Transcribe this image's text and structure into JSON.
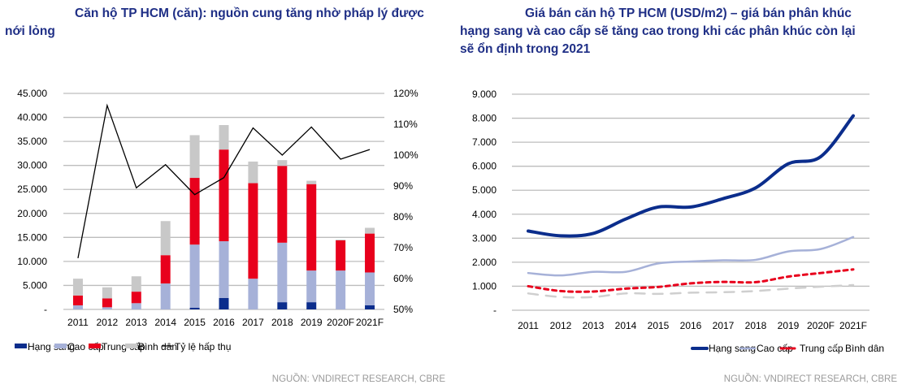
{
  "chart_data": [
    {
      "type": "bar",
      "stacked": true,
      "title": "Căn hộ TP HCM (căn): nguồn cung tăng nhờ pháp lý được nới lỏng",
      "categories": [
        "2011",
        "2012",
        "2013",
        "2014",
        "2015",
        "2016",
        "2017",
        "2018",
        "2019",
        "2020F",
        "2021F"
      ],
      "ylim": [
        0,
        45000
      ],
      "yticks": [
        "-",
        "5.000",
        "10.000",
        "15.000",
        "20.000",
        "25.000",
        "30.000",
        "35.000",
        "40.000",
        "45.000"
      ],
      "y2lim": [
        50,
        120
      ],
      "y2ticks": [
        "50%",
        "60%",
        "70%",
        "80%",
        "90%",
        "100%",
        "110%",
        "120%"
      ],
      "series": [
        {
          "name": "Hạng sang",
          "color": "#0b2d8c",
          "values": [
            0,
            0,
            0,
            0,
            350,
            2400,
            0,
            1500,
            1500,
            0,
            850
          ]
        },
        {
          "name": "Cao cấp",
          "color": "#a6b1d8",
          "values": [
            850,
            450,
            1300,
            5400,
            13150,
            11800,
            6400,
            12400,
            6600,
            8100,
            6850
          ]
        },
        {
          "name": "Trung cấp",
          "color": "#e8001c",
          "values": [
            2050,
            1850,
            2400,
            5900,
            13900,
            19100,
            19900,
            16000,
            18000,
            6300,
            8100
          ]
        },
        {
          "name": "Bình dân",
          "color": "#c8c8c8",
          "values": [
            3500,
            2300,
            3200,
            7100,
            8900,
            5100,
            4500,
            1200,
            700,
            150,
            1200
          ]
        }
      ],
      "line": {
        "name": "Tỷ lệ hấp thụ",
        "color": "#000000",
        "axis": "right",
        "values": [
          66.6,
          116.1,
          89.4,
          96.9,
          87.2,
          92.7,
          108.8,
          100.0,
          109.1,
          98.7,
          101.8
        ]
      },
      "legend": "bottom",
      "source": "NGUỒN: VNDIRECT RESEARCH, CBRE"
    },
    {
      "type": "line",
      "title": "Giá bán căn hộ TP HCM (USD/m2) – giá bán phân khúc hạng sang và cao cấp sẽ tăng cao trong khi các phân khúc còn lại sẽ ổn định trong 2021",
      "categories": [
        "2011",
        "2012",
        "2013",
        "2014",
        "2015",
        "2016",
        "2017",
        "2018",
        "2019",
        "2020F",
        "2021F"
      ],
      "ylim": [
        0,
        9000
      ],
      "yticks": [
        "-",
        "1.000",
        "2.000",
        "3.000",
        "4.000",
        "5.000",
        "6.000",
        "7.000",
        "8.000",
        "9.000"
      ],
      "series": [
        {
          "name": "Hạng sang",
          "color": "#0b2d8c",
          "style": "solid",
          "values": [
            3300,
            3100,
            3200,
            3800,
            4300,
            4300,
            4650,
            5100,
            6100,
            6400,
            8100
          ]
        },
        {
          "name": "Cao cấp",
          "color": "#a6b1d8",
          "style": "solid",
          "values": [
            1550,
            1450,
            1600,
            1600,
            1950,
            2030,
            2080,
            2100,
            2450,
            2550,
            3050
          ]
        },
        {
          "name": "Trung cấp",
          "color": "#e8001c",
          "style": "dashed",
          "values": [
            1000,
            800,
            780,
            900,
            970,
            1120,
            1180,
            1170,
            1400,
            1550,
            1700
          ]
        },
        {
          "name": "Bình dân",
          "color": "#cfcfcf",
          "style": "dashed",
          "values": [
            700,
            550,
            550,
            700,
            680,
            730,
            750,
            800,
            900,
            980,
            1050
          ]
        }
      ],
      "legend": "bottom",
      "source": "NGUỒN: VNDIRECT RESEARCH, CBRE"
    }
  ]
}
